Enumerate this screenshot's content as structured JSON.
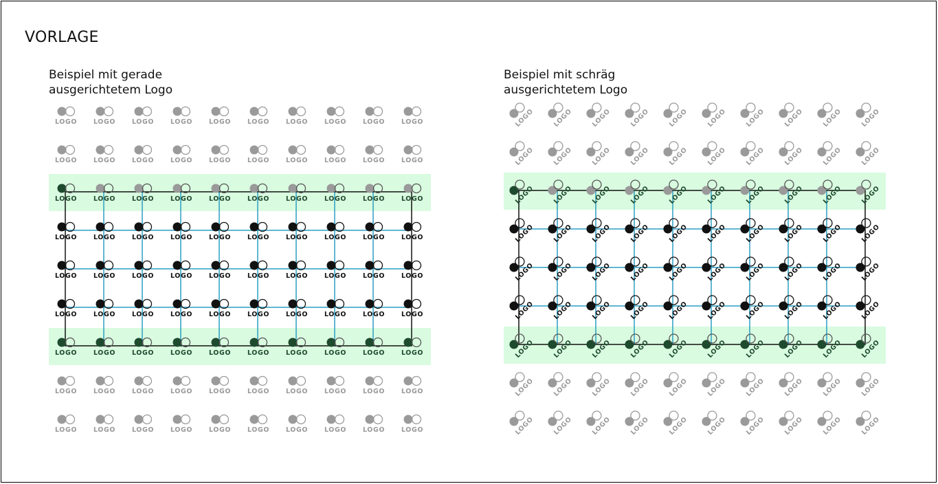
{
  "page": {
    "title": "VORLAGE"
  },
  "examples": [
    {
      "id": "straight",
      "label_line1": "Beispiel mit gerade",
      "label_line2": "ausgerichtetem Logo"
    },
    {
      "id": "tilted",
      "label_line1": "Beispiel mit schräg",
      "label_line2": "ausgerichtetem Logo"
    }
  ],
  "logo": {
    "text": "LOGO",
    "mark_icon": "filled-circle-and-outline-circle"
  },
  "layout_counts": {
    "rows": 9,
    "columns": 10,
    "grid_rows": [
      2,
      6
    ]
  },
  "colors": {
    "highlight": "#d9fbe0",
    "grid_line": "#2b9ec2",
    "logo_active": "#111111",
    "logo_inactive": "#9a9a9a",
    "logo_in_highlight": "#1e4a2e",
    "logo_in_highlight_outline": "#555555"
  }
}
